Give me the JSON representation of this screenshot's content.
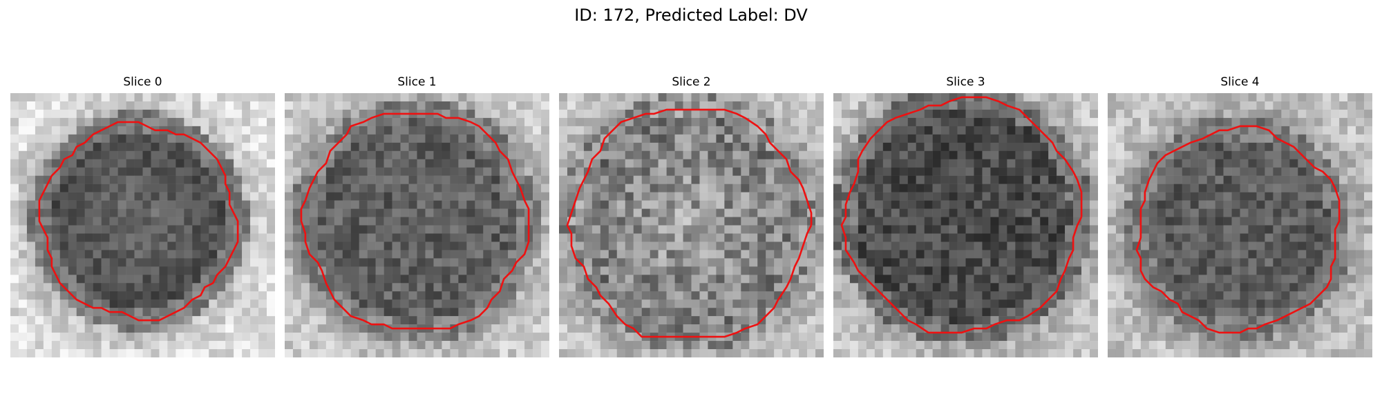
{
  "figure": {
    "title": "ID: 172, Predicted Label: DV"
  },
  "panels": [
    {
      "label": "Slice 0",
      "contour_color": "#ee1111"
    },
    {
      "label": "Slice 1",
      "contour_color": "#ee1111"
    },
    {
      "label": "Slice 2",
      "contour_color": "#ee1111"
    },
    {
      "label": "Slice 3",
      "contour_color": "#ee1111"
    },
    {
      "label": "Slice 4",
      "contour_color": "#ee1111"
    }
  ]
}
